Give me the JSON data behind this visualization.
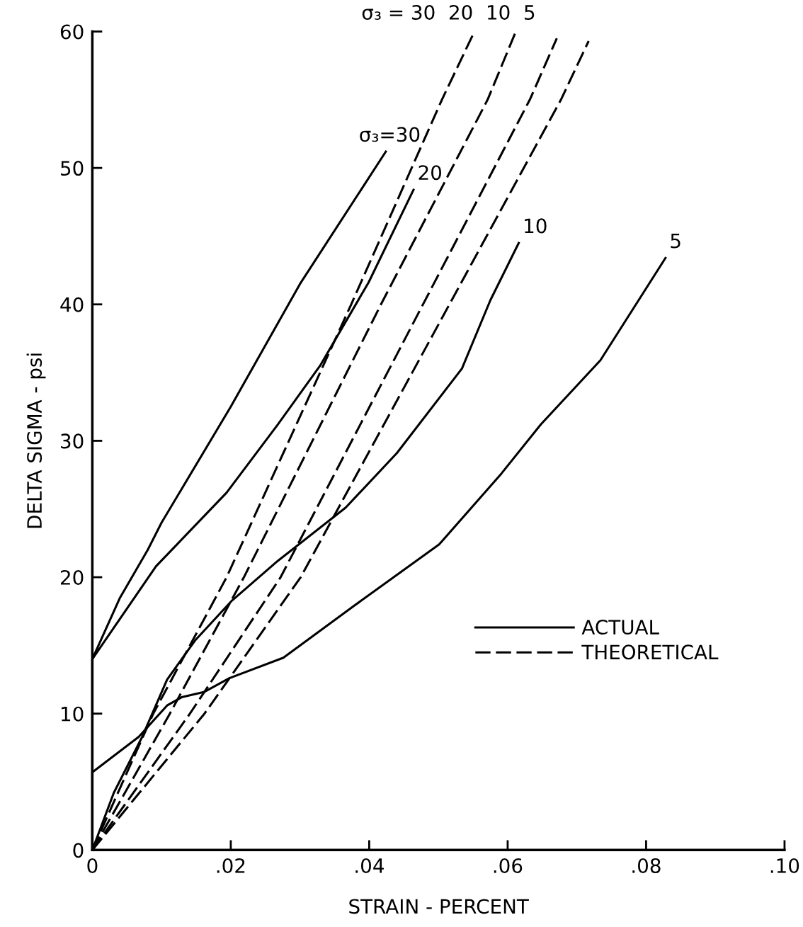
{
  "chart_data": {
    "type": "line",
    "xlabel": "STRAIN - PERCENT",
    "ylabel": "DELTA SIGMA - psi",
    "xlim": [
      0,
      0.1
    ],
    "ylim": [
      0,
      60
    ],
    "xticks": [
      0,
      {
        "value": 0.02,
        "label": ".02"
      },
      {
        "value": 0.04,
        "label": ".04"
      },
      {
        "value": 0.06,
        "label": ".06"
      },
      {
        "value": 0.08,
        "label": ".08"
      },
      {
        "value": 0.1,
        "label": ".10"
      }
    ],
    "yticks": [
      0,
      10,
      20,
      30,
      40,
      50,
      60
    ],
    "grid": false,
    "legend": "right",
    "marker": "none",
    "series": [
      {
        "name": "ACTUAL",
        "color": "#000000",
        "line_style": "solid",
        "x": [
          0,
          0,
          0.004,
          0.008,
          0.01,
          0.02,
          0.03,
          0.0424
        ],
        "values": [
          0,
          14,
          18.5,
          22,
          24,
          32.5,
          41.5,
          51.2
        ]
      },
      {
        "color": "#000000",
        "line_style": "solid",
        "x": [
          0,
          0,
          0.0092,
          0.0194,
          0.0268,
          0.0329,
          0.0399,
          0.0464
        ],
        "values": [
          0,
          14,
          20.8,
          26.2,
          31.2,
          35.5,
          41.6,
          48.4
        ]
      },
      {
        "color": "#000000",
        "line_style": "solid",
        "x": [
          0,
          0.0031,
          0.0072,
          0.0108,
          0.0149,
          0.0202,
          0.0268,
          0.0366,
          0.044,
          0.0534,
          0.0575,
          0.0616
        ],
        "values": [
          0,
          4.2,
          8.3,
          12.5,
          15.4,
          18.3,
          21.2,
          25.1,
          29.1,
          35.3,
          40.3,
          44.5
        ]
      },
      {
        "color": "#000000",
        "line_style": "solid",
        "x": [
          0,
          0,
          0.0067,
          0.0108,
          0.0129,
          0.0162,
          0.0198,
          0.0276,
          0.0378,
          0.0501,
          0.0591,
          0.0648,
          0.0734,
          0.0828
        ],
        "values": [
          0,
          5.7,
          8.3,
          10.6,
          11.2,
          11.6,
          12.6,
          14.1,
          17.9,
          22.4,
          27.6,
          31.2,
          35.9,
          43.4
        ]
      },
      {
        "name": "THEORETICAL",
        "color": "#000000",
        "line_style": "dashed",
        "x": [
          0,
          0.0088,
          0.0194,
          0.0374,
          0.0505,
          0.0552
        ],
        "values": [
          0,
          10,
          20,
          40,
          55,
          60
        ]
      },
      {
        "color": "#000000",
        "line_style": "dashed",
        "x": [
          0,
          0.0112,
          0.0219,
          0.0417,
          0.0571,
          0.0611
        ],
        "values": [
          0,
          10,
          20,
          40,
          55,
          59.9
        ]
      },
      {
        "color": "#000000",
        "line_style": "dashed",
        "x": [
          0,
          0.0141,
          0.0272,
          0.0632,
          0.0671
        ],
        "values": [
          0,
          10,
          20,
          55,
          59.5
        ]
      },
      {
        "color": "#000000",
        "line_style": "dashed",
        "x": [
          0,
          0.0162,
          0.0301,
          0.0677,
          0.0717
        ],
        "values": [
          0,
          10,
          20,
          55,
          59.3
        ]
      }
    ],
    "annotations": [
      {
        "text": "σ₃ = 30  20  10  5",
        "x": 0.0552,
        "y": 60
      },
      {
        "text": "σ₃=30",
        "x": 0.0424,
        "y": 51.2
      },
      {
        "text": "20",
        "x": 0.0464,
        "y": 48.4
      },
      {
        "text": "10",
        "x": 0.0616,
        "y": 44.5
      },
      {
        "text": "5",
        "x": 0.0828,
        "y": 43.4
      }
    ]
  }
}
